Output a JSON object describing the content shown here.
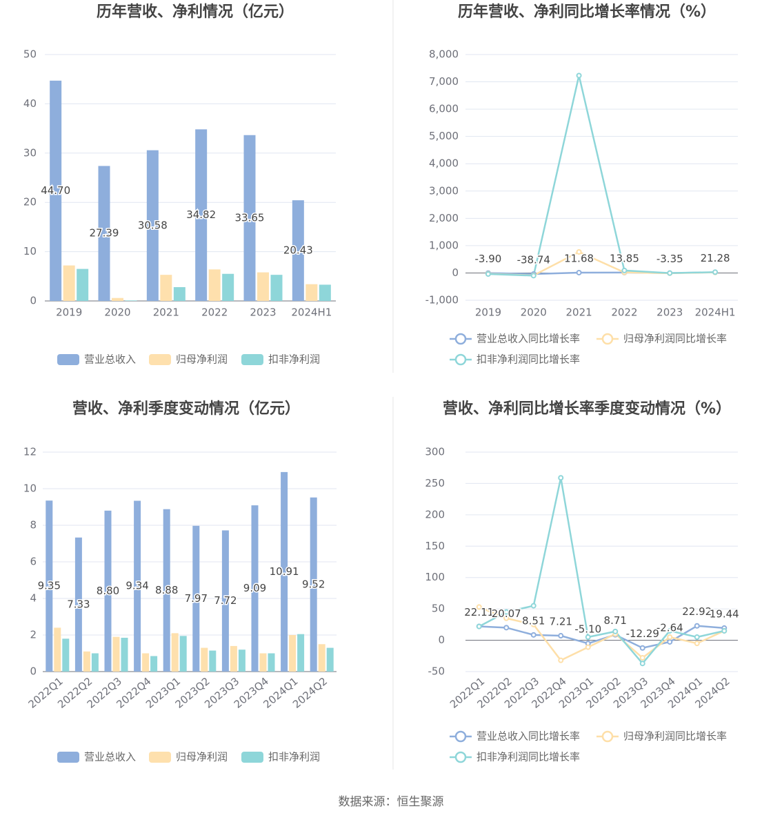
{
  "chart_data": [
    {
      "type": "bar",
      "title": "历年营收、净利情况（亿元）",
      "categories": [
        "2019",
        "2020",
        "2021",
        "2022",
        "2023",
        "2024H1"
      ],
      "series": [
        {
          "name": "营业总收入",
          "color": "#8eaedc",
          "values": [
            44.7,
            27.39,
            30.58,
            34.82,
            33.65,
            20.43
          ],
          "value_labels": [
            "44.70",
            "27.39",
            "30.58",
            "34.82",
            "33.65",
            "20.43"
          ]
        },
        {
          "name": "归母净利润",
          "color": "#fee0ad",
          "values": [
            7.2,
            0.6,
            5.3,
            6.4,
            5.8,
            3.4
          ]
        },
        {
          "name": "扣非净利润",
          "color": "#8ed6d9",
          "values": [
            6.5,
            0.1,
            2.8,
            5.5,
            5.3,
            3.3
          ]
        }
      ],
      "ylim": [
        0,
        50
      ],
      "yticks": [
        0,
        10,
        20,
        30,
        40,
        50
      ],
      "grid": true
    },
    {
      "type": "line",
      "title": "历年营收、净利同比增长率情况（%）",
      "categories": [
        "2019",
        "2020",
        "2021",
        "2022",
        "2023",
        "2024H1"
      ],
      "series": [
        {
          "name": "营业总收入同比增长率",
          "color": "#8eaedc",
          "values": [
            -3.9,
            -38.74,
            11.68,
            13.85,
            -3.35,
            21.28
          ],
          "value_labels": [
            "-3.90",
            "-38.74",
            "11.68",
            "13.85",
            "-3.35",
            "21.28"
          ]
        },
        {
          "name": "归母净利润同比增长率",
          "color": "#fedfa8",
          "values": [
            -30,
            -91,
            770,
            20,
            -10,
            20
          ]
        },
        {
          "name": "扣非净利润同比增长率",
          "color": "#8ed6d9",
          "values": [
            -40,
            -98,
            7230,
            90,
            -5,
            30
          ]
        }
      ],
      "ylim": [
        -1000,
        8000
      ],
      "yticks": [
        {
          "value": -1000,
          "label": "-1,000"
        },
        0,
        {
          "value": 1000,
          "label": "1,000"
        },
        {
          "value": 2000,
          "label": "2,000"
        },
        {
          "value": 3000,
          "label": "3,000"
        },
        {
          "value": 4000,
          "label": "4,000"
        },
        {
          "value": 5000,
          "label": "5,000"
        },
        {
          "value": 6000,
          "label": "6,000"
        },
        {
          "value": 7000,
          "label": "7,000"
        },
        {
          "value": 8000,
          "label": "8,000"
        }
      ],
      "grid": true
    },
    {
      "type": "bar",
      "title": "营收、净利季度变动情况（亿元）",
      "categories": [
        "2022Q1",
        "2022Q2",
        "2022Q3",
        "2022Q4",
        "2023Q1",
        "2023Q2",
        "2023Q3",
        "2023Q4",
        "2024Q1",
        "2024Q2"
      ],
      "series": [
        {
          "name": "营业总收入",
          "color": "#8eaedc",
          "values": [
            9.35,
            7.33,
            8.8,
            9.34,
            8.88,
            7.97,
            7.72,
            9.09,
            10.91,
            9.52
          ],
          "value_labels": [
            "9.35",
            "7.33",
            "8.80",
            "9.34",
            "8.88",
            "7.97",
            "7.72",
            "9.09",
            "10.91",
            "9.52"
          ]
        },
        {
          "name": "归母净利润",
          "color": "#fee0ad",
          "values": [
            2.4,
            1.1,
            1.9,
            1.0,
            2.1,
            1.3,
            1.4,
            1.0,
            2.0,
            1.5
          ]
        },
        {
          "name": "扣非净利润",
          "color": "#8ed6d9",
          "values": [
            1.8,
            1.0,
            1.85,
            0.85,
            1.95,
            1.15,
            1.2,
            1.0,
            2.05,
            1.3
          ]
        }
      ],
      "ylim": [
        0,
        12
      ],
      "yticks": [
        0,
        2,
        4,
        6,
        8,
        10,
        12
      ],
      "grid": true
    },
    {
      "type": "line",
      "title": "营收、净利同比增长率季度变动情况（%）",
      "categories": [
        "2022Q1",
        "2022Q2",
        "2022Q3",
        "2022Q4",
        "2023Q1",
        "2023Q2",
        "2023Q3",
        "2023Q4",
        "2024Q1",
        "2024Q2"
      ],
      "series": [
        {
          "name": "营业总收入同比增长率",
          "color": "#8eaedc",
          "values": [
            22.11,
            20.07,
            8.51,
            7.21,
            -5.1,
            8.71,
            -12.29,
            -2.64,
            22.92,
            19.44
          ],
          "value_labels": [
            "22.11",
            "20.07",
            "8.51",
            "7.21",
            "-5.10",
            "8.71",
            "-12.29",
            "-2.64",
            "22.92",
            "19.44"
          ]
        },
        {
          "name": "归母净利润同比增长率",
          "color": "#fedfa8",
          "values": [
            53,
            35,
            25,
            -32,
            -11,
            10,
            -28,
            5,
            -5,
            15
          ]
        },
        {
          "name": "扣非净利润同比增长率",
          "color": "#8ed6d9",
          "values": [
            22,
            45,
            55,
            259,
            5,
            14,
            -37,
            15,
            5,
            15
          ]
        }
      ],
      "ylim": [
        -50,
        300
      ],
      "yticks": [
        -50,
        0,
        50,
        100,
        150,
        200,
        250,
        300
      ],
      "grid": true
    }
  ],
  "source": "数据来源：恒生聚源"
}
